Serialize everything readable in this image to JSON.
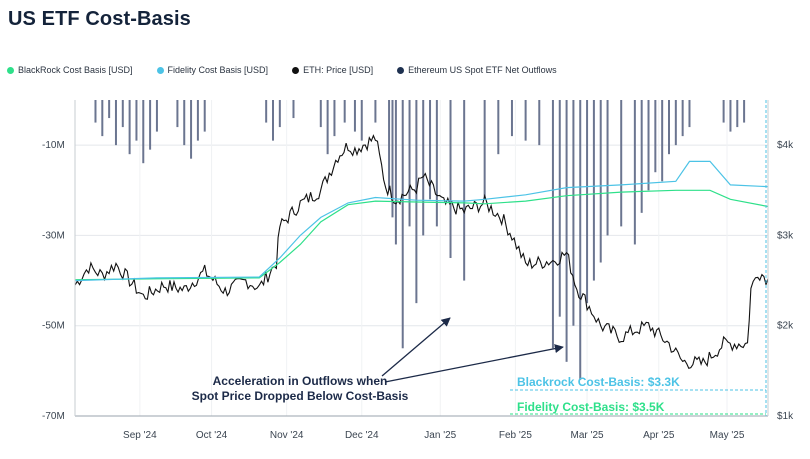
{
  "title": "US ETF Cost-Basis",
  "legend": [
    {
      "label": "BlackRock Cost Basis [USD]",
      "color": "#2ee08a"
    },
    {
      "label": "Fidelity Cost Basis [USD]",
      "color": "#4cc3e6"
    },
    {
      "label": "ETH: Price [USD]",
      "color": "#111111"
    },
    {
      "label": "Ethereum US Spot ETF Net Outflows",
      "color": "#1e3150"
    }
  ],
  "annotation": {
    "line1": "Acceleration in Outflows when",
    "line2": "Spot Price Dropped Below Cost-Basis"
  },
  "labels": {
    "blackrock": "Blackrock Cost-Basis: $3.3K",
    "fidelity": "Fidelity Cost-Basis: $3.5K"
  },
  "chart_data": {
    "type": "line",
    "x_ticks": [
      "Sep '24",
      "Oct '24",
      "Nov '24",
      "Dec '24",
      "Jan '25",
      "Feb '25",
      "Mar '25",
      "Apr '25",
      "May '25"
    ],
    "y_left_ticks": [
      "-10M",
      "-30M",
      "-50M",
      "-70M"
    ],
    "y_right_ticks": [
      "$4k",
      "$3k",
      "$2k",
      "$1k"
    ],
    "y_left_range": [
      -70,
      0
    ],
    "y_right_range": [
      1000,
      4500
    ],
    "series": [
      {
        "name": "ETH: Price [USD]",
        "color": "#111111",
        "points": [
          [
            0,
            2450
          ],
          [
            0.02,
            2650
          ],
          [
            0.04,
            2560
          ],
          [
            0.06,
            2680
          ],
          [
            0.08,
            2500
          ],
          [
            0.1,
            2320
          ],
          [
            0.13,
            2450
          ],
          [
            0.16,
            2400
          ],
          [
            0.19,
            2600
          ],
          [
            0.22,
            2380
          ],
          [
            0.25,
            2500
          ],
          [
            0.27,
            2420
          ],
          [
            0.295,
            2700
          ],
          [
            0.3,
            3100
          ],
          [
            0.33,
            3350
          ],
          [
            0.36,
            3500
          ],
          [
            0.385,
            3880
          ],
          [
            0.4,
            4000
          ],
          [
            0.41,
            3950
          ],
          [
            0.44,
            4080
          ],
          [
            0.455,
            3550
          ],
          [
            0.47,
            3400
          ],
          [
            0.5,
            3530
          ],
          [
            0.51,
            3650
          ],
          [
            0.54,
            3350
          ],
          [
            0.57,
            3270
          ],
          [
            0.6,
            3360
          ],
          [
            0.625,
            3200
          ],
          [
            0.64,
            3000
          ],
          [
            0.66,
            2680
          ],
          [
            0.7,
            2720
          ],
          [
            0.72,
            2800
          ],
          [
            0.735,
            2420
          ],
          [
            0.75,
            2250
          ],
          [
            0.77,
            2000
          ],
          [
            0.8,
            1870
          ],
          [
            0.82,
            1950
          ],
          [
            0.84,
            2000
          ],
          [
            0.87,
            1800
          ],
          [
            0.89,
            1600
          ],
          [
            0.92,
            1580
          ],
          [
            0.95,
            1800
          ],
          [
            0.985,
            1800
          ],
          [
            0.99,
            2400
          ],
          [
            1.0,
            2600
          ],
          [
            1.015,
            2520
          ]
        ]
      },
      {
        "name": "BlackRock Cost Basis [USD]",
        "color": "#2ee08a",
        "points": [
          [
            0,
            2510
          ],
          [
            0.12,
            2520
          ],
          [
            0.27,
            2530
          ],
          [
            0.3,
            2700
          ],
          [
            0.33,
            2900
          ],
          [
            0.36,
            3150
          ],
          [
            0.4,
            3340
          ],
          [
            0.44,
            3380
          ],
          [
            0.5,
            3370
          ],
          [
            0.57,
            3360
          ],
          [
            0.6,
            3350
          ],
          [
            0.66,
            3380
          ],
          [
            0.72,
            3440
          ],
          [
            0.8,
            3480
          ],
          [
            0.88,
            3500
          ],
          [
            0.93,
            3500
          ],
          [
            0.96,
            3400
          ],
          [
            1.015,
            3320
          ]
        ]
      },
      {
        "name": "Fidelity Cost Basis [USD]",
        "color": "#4cc3e6",
        "points": [
          [
            0,
            2500
          ],
          [
            0.12,
            2530
          ],
          [
            0.27,
            2540
          ],
          [
            0.3,
            2750
          ],
          [
            0.33,
            3000
          ],
          [
            0.36,
            3200
          ],
          [
            0.4,
            3360
          ],
          [
            0.44,
            3420
          ],
          [
            0.5,
            3390
          ],
          [
            0.57,
            3380
          ],
          [
            0.6,
            3400
          ],
          [
            0.66,
            3450
          ],
          [
            0.72,
            3530
          ],
          [
            0.8,
            3560
          ],
          [
            0.88,
            3600
          ],
          [
            0.9,
            3820
          ],
          [
            0.93,
            3820
          ],
          [
            0.96,
            3560
          ],
          [
            1.015,
            3540
          ]
        ]
      }
    ],
    "outflows_note": "bars hang from top axis; depth in millions (negative)",
    "outflows": [
      [
        0.03,
        -5
      ],
      [
        0.04,
        -8
      ],
      [
        0.05,
        -4
      ],
      [
        0.06,
        -10
      ],
      [
        0.07,
        -6
      ],
      [
        0.08,
        -12
      ],
      [
        0.09,
        -9
      ],
      [
        0.1,
        -14
      ],
      [
        0.11,
        -11
      ],
      [
        0.12,
        -7
      ],
      [
        0.15,
        -6
      ],
      [
        0.16,
        -10
      ],
      [
        0.17,
        -13
      ],
      [
        0.18,
        -9
      ],
      [
        0.19,
        -7
      ],
      [
        0.28,
        -5
      ],
      [
        0.29,
        -9
      ],
      [
        0.3,
        -6
      ],
      [
        0.32,
        -4
      ],
      [
        0.36,
        -6
      ],
      [
        0.37,
        -12
      ],
      [
        0.38,
        -8
      ],
      [
        0.395,
        -5
      ],
      [
        0.41,
        -7
      ],
      [
        0.42,
        -9
      ],
      [
        0.44,
        -5
      ],
      [
        0.46,
        -20
      ],
      [
        0.465,
        -26
      ],
      [
        0.47,
        -32
      ],
      [
        0.48,
        -55
      ],
      [
        0.49,
        -28
      ],
      [
        0.5,
        -45
      ],
      [
        0.51,
        -30
      ],
      [
        0.52,
        -22
      ],
      [
        0.53,
        -28
      ],
      [
        0.55,
        -35
      ],
      [
        0.57,
        -40
      ],
      [
        0.6,
        -22
      ],
      [
        0.62,
        -12
      ],
      [
        0.64,
        -8
      ],
      [
        0.66,
        -9
      ],
      [
        0.68,
        -10
      ],
      [
        0.7,
        -55
      ],
      [
        0.71,
        -48
      ],
      [
        0.72,
        -58
      ],
      [
        0.73,
        -50
      ],
      [
        0.74,
        -62
      ],
      [
        0.75,
        -45
      ],
      [
        0.76,
        -40
      ],
      [
        0.77,
        -36
      ],
      [
        0.78,
        -30
      ],
      [
        0.8,
        -28
      ],
      [
        0.82,
        -32
      ],
      [
        0.83,
        -25
      ],
      [
        0.84,
        -20
      ],
      [
        0.85,
        -16
      ],
      [
        0.86,
        -18
      ],
      [
        0.87,
        -12
      ],
      [
        0.88,
        -10
      ],
      [
        0.89,
        -8
      ],
      [
        0.9,
        -6
      ],
      [
        0.95,
        -5
      ],
      [
        0.96,
        -7
      ],
      [
        0.97,
        -6
      ],
      [
        0.98,
        -5
      ]
    ],
    "outflow_color": "#6b7590",
    "annotation_arrows_note": "arrows point to bars near Jan and Mar"
  }
}
